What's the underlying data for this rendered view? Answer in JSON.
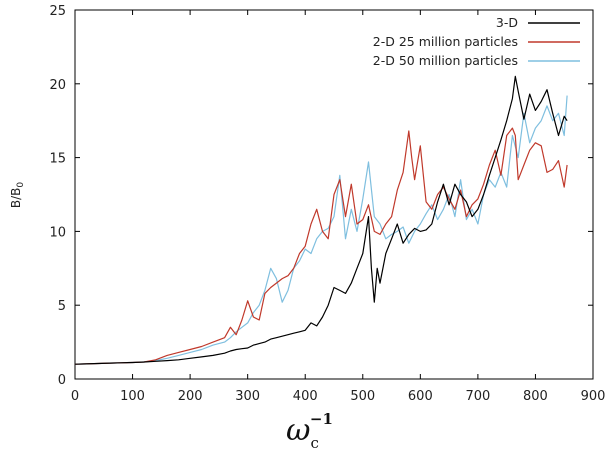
{
  "chart_data": {
    "type": "line",
    "title": "",
    "ylabel": {
      "base": "B/B",
      "sub": "0"
    },
    "xlabel": {
      "symbol": "ω",
      "sub": "c",
      "sup": "−1"
    },
    "xlim": [
      0,
      900
    ],
    "ylim": [
      0,
      25
    ],
    "xticks": [
      0,
      100,
      200,
      300,
      400,
      500,
      600,
      700,
      800,
      900
    ],
    "yticks": [
      0,
      5,
      10,
      15,
      20,
      25
    ],
    "xtick_labels": [
      "0",
      "100",
      "200",
      "300",
      "400",
      "500",
      "600",
      "700",
      "800",
      "900"
    ],
    "ytick_labels": [
      "0",
      "5",
      "10",
      "15",
      "20",
      "25"
    ],
    "grid": false,
    "legend_position": "top-right",
    "series": [
      {
        "name": "3-D",
        "color": "#000000",
        "x": [
          0,
          20,
          40,
          60,
          80,
          100,
          120,
          140,
          160,
          180,
          200,
          220,
          240,
          260,
          270,
          280,
          290,
          300,
          310,
          320,
          330,
          340,
          350,
          360,
          370,
          380,
          390,
          400,
          410,
          420,
          430,
          440,
          450,
          460,
          470,
          480,
          490,
          500,
          510,
          515,
          520,
          525,
          530,
          540,
          550,
          560,
          570,
          580,
          590,
          600,
          610,
          620,
          630,
          640,
          650,
          660,
          670,
          680,
          690,
          700,
          710,
          720,
          730,
          740,
          750,
          760,
          765,
          770,
          780,
          790,
          800,
          810,
          820,
          830,
          840,
          850,
          855
        ],
        "values": [
          1.0,
          1.02,
          1.05,
          1.08,
          1.1,
          1.12,
          1.15,
          1.2,
          1.25,
          1.3,
          1.4,
          1.5,
          1.6,
          1.75,
          1.9,
          2.0,
          2.05,
          2.1,
          2.3,
          2.4,
          2.5,
          2.7,
          2.8,
          2.9,
          3.0,
          3.1,
          3.2,
          3.3,
          3.8,
          3.6,
          4.2,
          5.0,
          6.2,
          6.0,
          5.8,
          6.5,
          7.5,
          8.5,
          11.0,
          7.5,
          5.2,
          7.5,
          6.5,
          8.5,
          9.5,
          10.5,
          9.2,
          9.8,
          10.2,
          10.0,
          10.1,
          10.5,
          12.0,
          13.2,
          11.8,
          13.2,
          12.5,
          12.0,
          11.0,
          11.5,
          12.5,
          13.8,
          15.0,
          16.2,
          17.5,
          19.0,
          20.5,
          19.5,
          17.6,
          19.3,
          18.2,
          18.8,
          19.6,
          18.0,
          16.5,
          17.8,
          17.5
        ]
      },
      {
        "name": "2-D 25 million particles",
        "color": "#c0392b",
        "x": [
          0,
          20,
          40,
          60,
          80,
          100,
          120,
          140,
          160,
          180,
          200,
          220,
          240,
          260,
          270,
          280,
          290,
          300,
          310,
          320,
          330,
          340,
          350,
          360,
          370,
          380,
          390,
          400,
          410,
          420,
          430,
          440,
          450,
          460,
          470,
          480,
          490,
          500,
          510,
          520,
          530,
          540,
          550,
          560,
          570,
          580,
          585,
          590,
          600,
          610,
          620,
          630,
          640,
          650,
          660,
          670,
          680,
          690,
          700,
          710,
          720,
          730,
          740,
          750,
          760,
          765,
          770,
          780,
          790,
          800,
          810,
          820,
          830,
          840,
          850,
          855
        ],
        "values": [
          1.0,
          1.02,
          1.05,
          1.08,
          1.1,
          1.12,
          1.15,
          1.3,
          1.6,
          1.8,
          2.0,
          2.2,
          2.5,
          2.8,
          3.5,
          3.0,
          4.0,
          5.3,
          4.2,
          4.0,
          5.8,
          6.2,
          6.5,
          6.8,
          7.0,
          7.5,
          8.5,
          9.0,
          10.5,
          11.5,
          10.0,
          9.5,
          12.5,
          13.5,
          11.0,
          13.2,
          10.5,
          10.8,
          11.8,
          10.0,
          9.8,
          10.5,
          11.0,
          12.8,
          14.0,
          16.8,
          15.0,
          13.5,
          15.8,
          12.0,
          11.5,
          12.5,
          13.0,
          12.2,
          11.5,
          12.8,
          11.0,
          11.8,
          12.2,
          13.2,
          14.5,
          15.5,
          13.8,
          16.5,
          17.0,
          16.5,
          13.5,
          14.5,
          15.5,
          16.0,
          15.8,
          14.0,
          14.2,
          14.8,
          13.0,
          14.5
        ]
      },
      {
        "name": "2-D 50 million particles",
        "color": "#7fbfdf",
        "x": [
          0,
          20,
          40,
          60,
          80,
          100,
          120,
          140,
          160,
          180,
          200,
          220,
          240,
          260,
          270,
          280,
          290,
          300,
          310,
          320,
          330,
          340,
          350,
          360,
          370,
          380,
          390,
          400,
          410,
          420,
          430,
          440,
          450,
          460,
          470,
          480,
          490,
          500,
          510,
          520,
          530,
          540,
          550,
          560,
          570,
          580,
          590,
          600,
          610,
          620,
          630,
          640,
          650,
          660,
          670,
          680,
          690,
          700,
          710,
          720,
          730,
          740,
          750,
          760,
          770,
          780,
          790,
          800,
          810,
          820,
          830,
          840,
          850,
          855
        ],
        "values": [
          1.0,
          1.02,
          1.05,
          1.08,
          1.1,
          1.12,
          1.15,
          1.25,
          1.4,
          1.6,
          1.8,
          2.0,
          2.3,
          2.5,
          2.8,
          3.2,
          3.5,
          3.8,
          4.5,
          5.0,
          6.0,
          7.5,
          6.8,
          5.2,
          6.0,
          7.5,
          8.0,
          8.8,
          8.5,
          9.5,
          10.0,
          10.2,
          11.0,
          13.8,
          9.5,
          11.5,
          10.0,
          12.2,
          14.7,
          11.0,
          10.5,
          9.5,
          9.8,
          10.0,
          10.3,
          9.2,
          10.0,
          10.5,
          11.2,
          11.8,
          10.8,
          11.5,
          12.5,
          11.0,
          13.5,
          10.8,
          11.5,
          10.5,
          12.5,
          13.5,
          13.0,
          14.0,
          13.0,
          16.5,
          15.0,
          18.0,
          16.0,
          17.0,
          17.5,
          18.5,
          17.5,
          18.0,
          16.5,
          19.2
        ]
      }
    ]
  }
}
